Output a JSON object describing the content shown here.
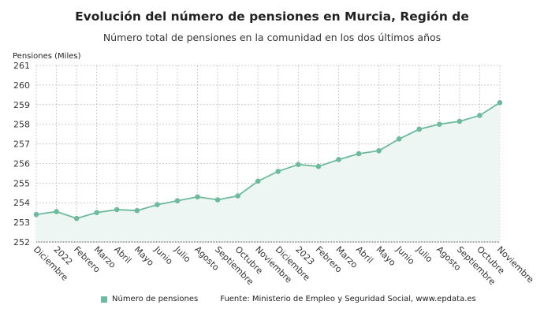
{
  "chart_data": {
    "type": "area",
    "title": "Evolución del número de pensiones en Murcia, Región de",
    "subtitle": "Número total de pensiones en la comunidad en los dos últimos años",
    "ylabel": "Pensiones (Miles)",
    "xlabel": "",
    "ylim": [
      252,
      261
    ],
    "yticks": [
      252,
      253,
      254,
      255,
      256,
      257,
      258,
      259,
      260,
      261
    ],
    "grid": true,
    "legend_position": "bottom",
    "categories": [
      "Diciembre",
      "2022",
      "Febrero",
      "Marzo",
      "Abril",
      "Mayo",
      "Junio",
      "Julio",
      "Agosto",
      "Septiembre",
      "Octubre",
      "Noviembre",
      "Diciembre",
      "2023",
      "Febrero",
      "Marzo",
      "Abril",
      "Mayo",
      "Junio",
      "Julio",
      "Agosto",
      "Septiembre",
      "Octubre",
      "Noviembre"
    ],
    "series": [
      {
        "name": "Número de pensiones",
        "color": "#6dba9c",
        "values": [
          253.4,
          253.55,
          253.2,
          253.5,
          253.65,
          253.6,
          253.9,
          254.1,
          254.3,
          254.15,
          254.35,
          255.1,
          255.6,
          255.95,
          255.85,
          256.2,
          256.5,
          256.65,
          257.25,
          257.75,
          258.0,
          258.15,
          258.45,
          259.1
        ]
      }
    ],
    "source": "Fuente: Ministerio de Empleo y Seguridad Social, www.epdata.es"
  }
}
